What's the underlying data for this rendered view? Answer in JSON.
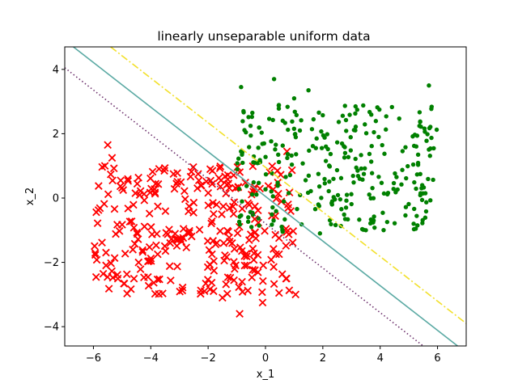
{
  "chart_data": {
    "type": "scatter",
    "title": "linearly unseparable uniform data",
    "xlabel": "x_1",
    "ylabel": "x_2",
    "xlim": [
      -7,
      7
    ],
    "ylim": [
      -4.6,
      4.7
    ],
    "xticks": [
      -6,
      -4,
      -2,
      0,
      2,
      4,
      6
    ],
    "yticks": [
      -4,
      -2,
      0,
      2,
      4
    ],
    "grid": false,
    "legend": "none",
    "series": [
      {
        "marker": "x",
        "color": "#ff0000",
        "distribution": "uniform",
        "x_range": [
          -6,
          1
        ],
        "y_range": [
          -3,
          1
        ],
        "count": 300,
        "outliers": [
          [
            -5.5,
            1.65
          ],
          [
            -5.6,
            1.0
          ],
          [
            -5.35,
            1.25
          ],
          [
            -1.85,
            0.85
          ],
          [
            -1.55,
            0.55
          ],
          [
            1.05,
            -3.0
          ],
          [
            -0.9,
            -3.6
          ],
          [
            -0.1,
            -3.25
          ],
          [
            -1.5,
            -3.1
          ],
          [
            0.75,
            1.45
          ],
          [
            -0.95,
            0.35
          ],
          [
            0.15,
            0.8
          ]
        ]
      },
      {
        "marker": "dot",
        "color": "#008000",
        "distribution": "uniform",
        "x_range": [
          -1,
          6
        ],
        "y_range": [
          -1,
          3
        ],
        "count": 300,
        "outliers": [
          [
            0.3,
            3.7
          ],
          [
            -0.85,
            3.45
          ],
          [
            1.0,
            3.1
          ],
          [
            5.7,
            3.5
          ],
          [
            1.5,
            3.35
          ],
          [
            0.6,
            -1.05
          ],
          [
            1.9,
            -1.1
          ],
          [
            3.5,
            -1.0
          ],
          [
            5.3,
            -0.85
          ],
          [
            -0.6,
            -0.6
          ],
          [
            1.2,
            2.1
          ]
        ]
      }
    ],
    "lines": [
      {
        "style": "solid",
        "color": "#5aa9a3",
        "points": [
          [
            -6.7,
            4.7
          ],
          [
            6.7,
            -4.6
          ]
        ]
      },
      {
        "style": "dotted",
        "color": "#6b2e6b",
        "points": [
          [
            -7,
            4.05
          ],
          [
            5.5,
            -4.6
          ]
        ]
      },
      {
        "style": "dashdot",
        "color": "#f2e02a",
        "points": [
          [
            -5.4,
            4.7
          ],
          [
            7,
            -3.9
          ]
        ]
      }
    ]
  }
}
